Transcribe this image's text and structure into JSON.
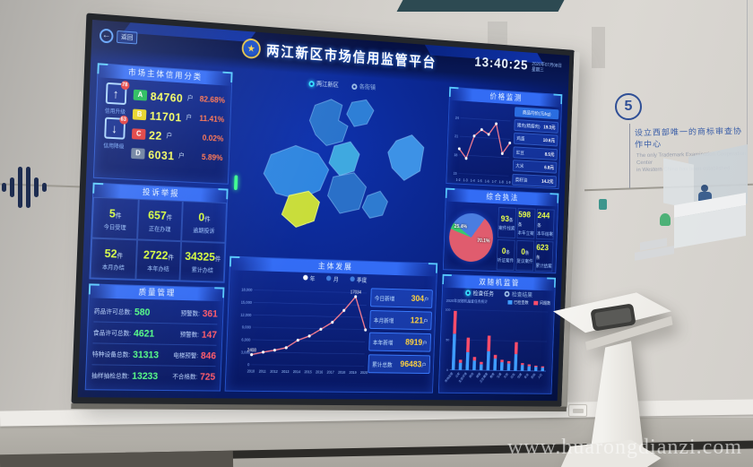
{
  "scene": {
    "watermark": "www.huarongdianzi.com",
    "wall_note": {
      "number": "5",
      "zh": "设立西部唯一的商标审查协作中心",
      "en_line1": "The only Trademark Examination Cooperation Center",
      "en_line2": "in Western China has been established."
    }
  },
  "header": {
    "back_label": "返回",
    "title": "两江新区市场信用监管平台",
    "time": "13:40:25",
    "date": "2020年07月08日",
    "weekday": "星期三"
  },
  "credit_panel": {
    "title": "市场主体信用分类",
    "upgrade": {
      "label": "信用升级",
      "badge": "78"
    },
    "downgrade": {
      "label": "信用降级",
      "badge": "63"
    },
    "rows": [
      {
        "grade": "A",
        "color": "#1db954",
        "count": "84760",
        "unit": "户",
        "percent": "82.68%"
      },
      {
        "grade": "B",
        "color": "#e6d21e",
        "count": "11701",
        "unit": "户",
        "percent": "11.41%"
      },
      {
        "grade": "C",
        "color": "#e03b3b",
        "count": "22",
        "unit": "户",
        "percent": "0.02%"
      },
      {
        "grade": "D",
        "color": "#6b7f9e",
        "count": "6031",
        "unit": "户",
        "percent": "5.89%"
      }
    ]
  },
  "complaints_panel": {
    "title": "投诉举报",
    "cells": [
      {
        "value": "5",
        "unit": "件",
        "label": "今日受理"
      },
      {
        "value": "657",
        "unit": "件",
        "label": "正在办理"
      },
      {
        "value": "0",
        "unit": "件",
        "label": "逾期投诉"
      },
      {
        "value": "52",
        "unit": "件",
        "label": "本月办结"
      },
      {
        "value": "2722",
        "unit": "件",
        "label": "本年办结"
      },
      {
        "value": "34325",
        "unit": "件",
        "label": "累计办结"
      }
    ]
  },
  "quality_panel": {
    "title": "质量管理",
    "rows": [
      {
        "label": "药品许可总数:",
        "value": "580",
        "label2": "预警数:",
        "value2": "361"
      },
      {
        "label": "食品许可总数:",
        "value": "4621",
        "label2": "预警数:",
        "value2": "147"
      },
      {
        "label": "特种设备总数:",
        "value": "31313",
        "label2": "电梯预警:",
        "value2": "846"
      },
      {
        "label": "抽样抽检总数:",
        "value": "13233",
        "label2": "不合格数:",
        "value2": "725"
      }
    ]
  },
  "map_panel": {
    "toggles": [
      {
        "label": "两江新区"
      },
      {
        "label": "各街镇"
      }
    ]
  },
  "development_panel": {
    "title": "主体发展",
    "legend": [
      "年",
      "月",
      "季度"
    ],
    "stats": [
      {
        "label": "今日新增",
        "value": "304",
        "unit": "户"
      },
      {
        "label": "本月新增",
        "value": "121",
        "unit": "户"
      },
      {
        "label": "本年新增",
        "value": "8919",
        "unit": "户"
      },
      {
        "label": "累计总数",
        "value": "96483",
        "unit": "户"
      }
    ]
  },
  "price_panel": {
    "title": "价格监测",
    "list_header": "商品均价(元/kg)",
    "rows": [
      {
        "name": "猪肉(精瘦肉)",
        "value": "19.3元"
      },
      {
        "name": "鸡蛋",
        "value": "10.6元"
      },
      {
        "name": "豇豆",
        "value": "8.5元"
      },
      {
        "name": "大米",
        "value": "6.8元"
      },
      {
        "name": "菜籽油",
        "value": "14.2元"
      }
    ]
  },
  "enforcement_panel": {
    "title": "综合执法",
    "stats": [
      {
        "value": "93",
        "unit": "条",
        "label": "案件线索"
      },
      {
        "value": "598",
        "unit": "条",
        "label": "本年立案"
      },
      {
        "value": "244",
        "unit": "条",
        "label": "本年结案"
      },
      {
        "value": "0",
        "unit": "条",
        "label": "听证案件"
      },
      {
        "value": "0",
        "unit": "条",
        "label": "复议案件"
      },
      {
        "value": "623",
        "unit": "条",
        "label": "累计结案"
      }
    ]
  },
  "random_panel": {
    "title": "双随机监管",
    "toggles": [
      "检查任务",
      "检查结果"
    ],
    "note": "2020年双随机抽查任务统计",
    "legend": [
      {
        "label": "已检查数",
        "color": "#3f9dff"
      },
      {
        "label": "问题数",
        "color": "#ff4d6a"
      }
    ]
  },
  "chart_data": [
    {
      "id": "development",
      "type": "line",
      "title": "主体发展",
      "x": [
        "2010",
        "2011",
        "2012",
        "2013",
        "2014",
        "2015",
        "2016",
        "2017",
        "2018",
        "2019",
        "2020"
      ],
      "values": [
        2408,
        3050,
        3580,
        4220,
        6080,
        7150,
        8860,
        10620,
        13580,
        17034,
        8919
      ],
      "ylim": [
        0,
        18000
      ],
      "yticks": [
        0,
        3000,
        6000,
        9000,
        12000,
        15000,
        18000
      ],
      "line_color": "#ff8090",
      "annotations": [
        {
          "index": 0,
          "text": "2408"
        },
        {
          "index": 9,
          "text": "17034"
        }
      ],
      "legend": [
        "年",
        "月",
        "季度"
      ],
      "legend_position": "top"
    },
    {
      "id": "price",
      "type": "line",
      "title": "价格监测",
      "x": [
        "1-2",
        "1-3",
        "1-4",
        "1-5",
        "1-6",
        "1-7",
        "1-8",
        "1-9"
      ],
      "values": [
        19.0,
        17.5,
        21.2,
        22.3,
        21.6,
        23.4,
        18.6,
        20.4
      ],
      "ylim": [
        15,
        25
      ],
      "yticks": [
        15,
        18,
        21,
        24
      ],
      "line_color": "#ff8090"
    },
    {
      "id": "enforcement",
      "type": "pie",
      "start_deg": -55,
      "slices": [
        {
          "label": "25.4%",
          "value": 25.4,
          "color": "#4a7de0"
        },
        {
          "label": "70.1%",
          "value": 70.1,
          "color": "#e05c6e"
        },
        {
          "label": "",
          "value": 4.5,
          "color": "#38c96e"
        }
      ]
    },
    {
      "id": "random",
      "type": "bar-stacked",
      "categories": [
        "市场监管",
        "公安",
        "生态环境",
        "税务",
        "城管",
        "卫生健康",
        "教育",
        "交通",
        "文旅",
        "应急",
        "住建",
        "农业",
        "民政",
        "人社"
      ],
      "series": [
        {
          "name": "已检查数",
          "color": "#3f9dff",
          "values": [
            60,
            12,
            30,
            16,
            10,
            32,
            20,
            14,
            12,
            28,
            10,
            8,
            7,
            6
          ]
        },
        {
          "name": "问题数",
          "color": "#ff4d6a",
          "values": [
            38,
            5,
            24,
            6,
            4,
            26,
            6,
            4,
            4,
            20,
            3,
            3,
            2,
            2
          ]
        }
      ],
      "ylim": [
        0,
        100
      ],
      "grid": false,
      "legend_position": "top-right"
    }
  ]
}
